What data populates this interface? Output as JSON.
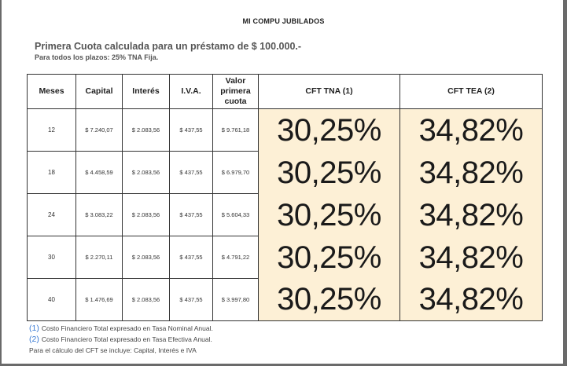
{
  "document": {
    "title": "MI COMPU JUBILADOS",
    "subtitle": "Primera Cuota calculada para un préstamo de $ 100.000.-",
    "note": "Para todos los plazos: 25% TNA Fija."
  },
  "table": {
    "headers": {
      "meses": "Meses",
      "capital": "Capital",
      "interes": "Interés",
      "iva": "I.V.A.",
      "valor_line1": "Valor",
      "valor_line2": "primera",
      "valor_line3": "cuota",
      "cft_tna": "CFT TNA (1)",
      "cft_tea": "CFT TEA (2)"
    },
    "rows": [
      {
        "meses": "12",
        "capital": "$ 7.240,07",
        "interes": "$ 2.083,56",
        "iva": "$ 437,55",
        "valor": "$ 9.761,18",
        "cft_tna": "30,25%",
        "cft_tea": "34,82%"
      },
      {
        "meses": "18",
        "capital": "$ 4.458,59",
        "interes": "$ 2.083,56",
        "iva": "$ 437,55",
        "valor": "$ 6.979,70",
        "cft_tna": "30,25%",
        "cft_tea": "34,82%"
      },
      {
        "meses": "24",
        "capital": "$ 3.083,22",
        "interes": "$ 2.083,56",
        "iva": "$ 437,55",
        "valor": "$ 5.604,33",
        "cft_tna": "30,25%",
        "cft_tea": "34,82%"
      },
      {
        "meses": "30",
        "capital": "$ 2.270,11",
        "interes": "$ 2.083,56",
        "iva": "$ 437,55",
        "valor": "$ 4.791,22",
        "cft_tna": "30,25%",
        "cft_tea": "34,82%"
      },
      {
        "meses": "40",
        "capital": "$ 1.476,69",
        "interes": "$ 2.083,56",
        "iva": "$ 437,55",
        "valor": "$ 3.997,80",
        "cft_tna": "30,25%",
        "cft_tea": "34,82%"
      }
    ]
  },
  "footnotes": [
    {
      "num": "(1)",
      "text": "Costo Financiero Total expresado en Tasa Nominal Anual."
    },
    {
      "num": "(2)",
      "text": "Costo Financiero Total expresado en Tasa Efectiva Anual."
    }
  ],
  "footnote_extra": "Para el cálculo del CFT se incluye: Capital, Interés e IVA",
  "colors": {
    "highlight_cells": "#fdf0d6",
    "footnote_number": "#3b7bd4",
    "frame": "#6a6a6a"
  }
}
